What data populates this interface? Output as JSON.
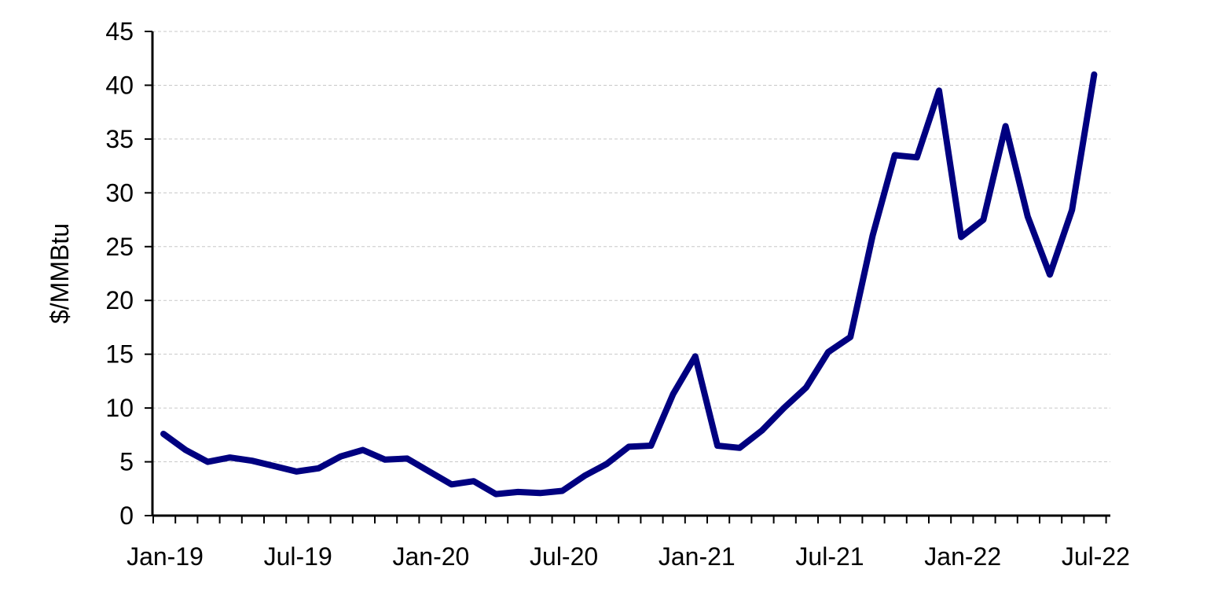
{
  "chart_data": {
    "type": "line",
    "title": "",
    "xlabel": "",
    "ylabel": "$/MMBtu",
    "ylim": [
      0,
      45
    ],
    "yticks": [
      0,
      5,
      10,
      15,
      20,
      25,
      30,
      35,
      40,
      45
    ],
    "xtick_labels": [
      "Jan-19",
      "Jul-19",
      "Jan-20",
      "Jul-20",
      "Jan-21",
      "Jul-21",
      "Jan-22",
      "Jul-22"
    ],
    "grid": true,
    "legend": "none",
    "x": [
      "Jan-19",
      "Feb-19",
      "Mar-19",
      "Apr-19",
      "May-19",
      "Jun-19",
      "Jul-19",
      "Aug-19",
      "Sep-19",
      "Oct-19",
      "Nov-19",
      "Dec-19",
      "Jan-20",
      "Feb-20",
      "Mar-20",
      "Apr-20",
      "May-20",
      "Jun-20",
      "Jul-20",
      "Aug-20",
      "Sep-20",
      "Oct-20",
      "Nov-20",
      "Dec-20",
      "Jan-21",
      "Feb-21",
      "Mar-21",
      "Apr-21",
      "May-21",
      "Jun-21",
      "Jul-21",
      "Aug-21",
      "Sep-21",
      "Oct-21",
      "Nov-21",
      "Dec-21",
      "Jan-22",
      "Feb-22",
      "Mar-22",
      "Apr-22",
      "May-22",
      "Jun-22",
      "Jul-22"
    ],
    "series": [
      {
        "color": "#000080",
        "values": [
          7.6,
          6.1,
          5.0,
          5.4,
          5.1,
          4.6,
          4.1,
          4.4,
          5.5,
          6.1,
          5.2,
          5.3,
          4.1,
          2.9,
          3.2,
          2.0,
          2.2,
          2.1,
          2.3,
          3.7,
          4.8,
          6.4,
          6.5,
          11.3,
          14.8,
          6.5,
          6.3,
          7.9,
          10.0,
          11.9,
          15.2,
          16.6,
          26.0,
          33.5,
          33.3,
          39.5,
          25.9,
          27.5,
          36.2,
          27.8,
          22.4,
          28.4,
          41.0
        ]
      }
    ]
  }
}
